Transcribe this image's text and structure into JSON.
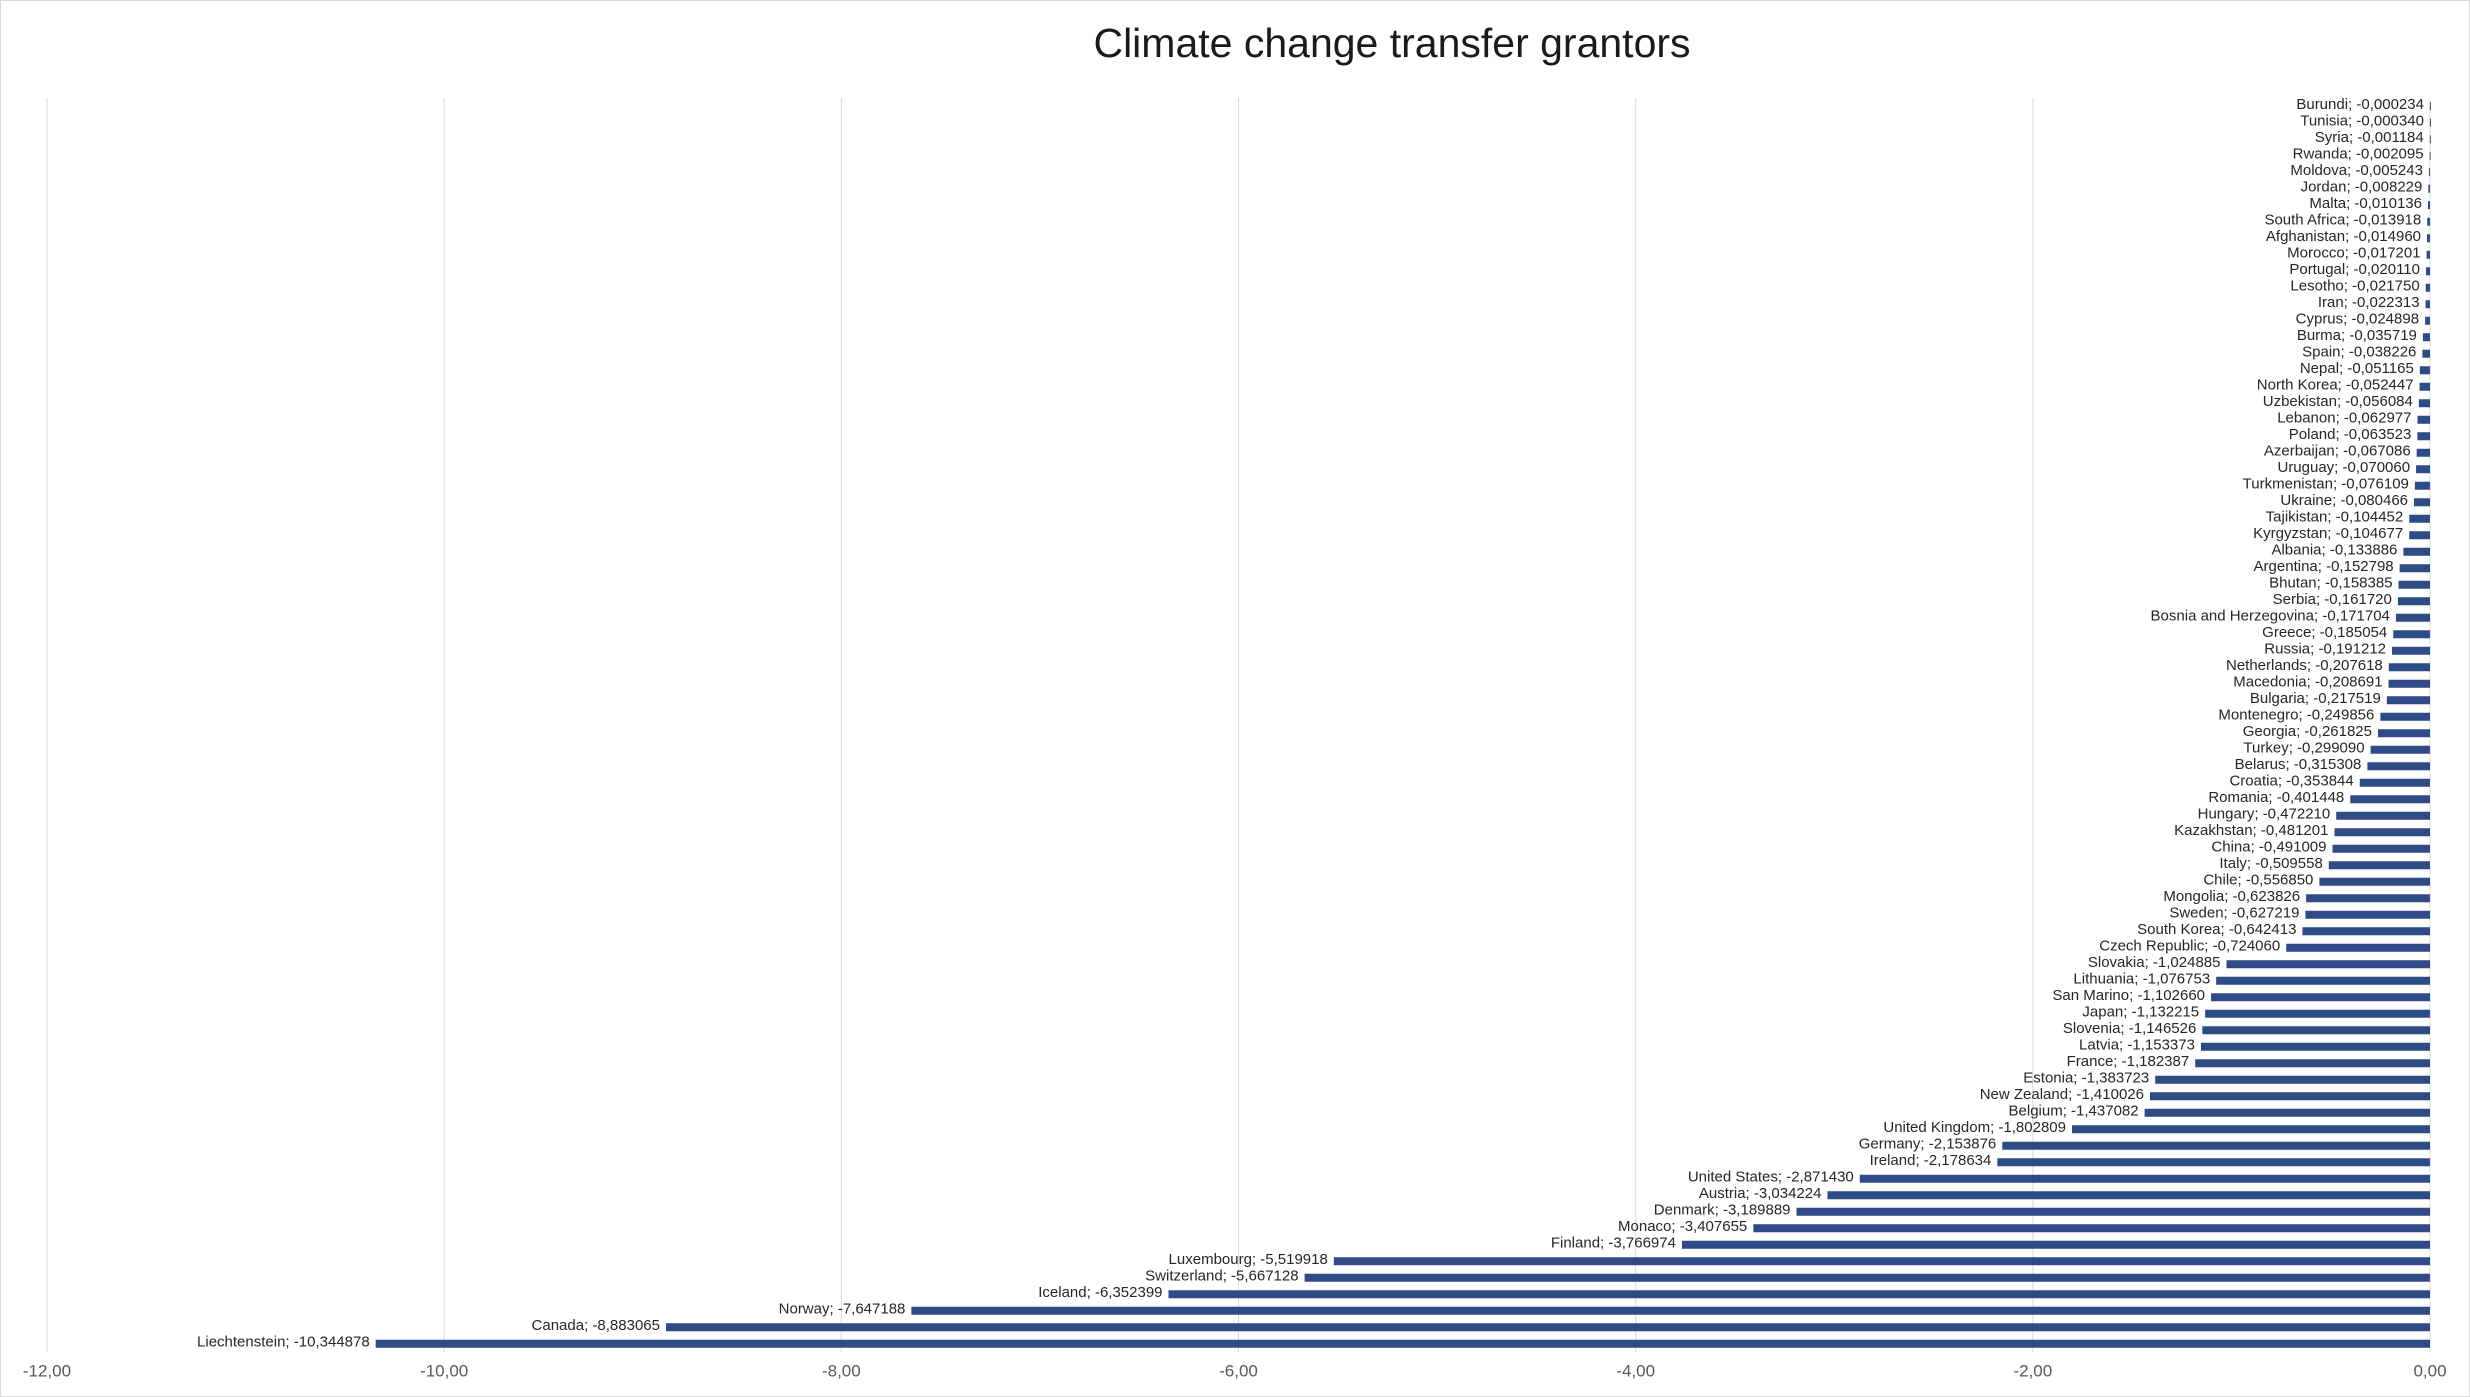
{
  "chart_data": {
    "type": "hbar",
    "title": "Climate change transfer grantors",
    "color": "#2f4b85",
    "grid": true,
    "xlim": [
      -12,
      0
    ],
    "xticks": [
      {
        "value": -12,
        "label": "-12,00"
      },
      {
        "value": -10,
        "label": "-10,00"
      },
      {
        "value": -8,
        "label": "-8,00"
      },
      {
        "value": -6,
        "label": "-6,00"
      },
      {
        "value": -4,
        "label": "-4,00"
      },
      {
        "value": -2,
        "label": "-2,00"
      },
      {
        "value": 0,
        "label": "0,00"
      }
    ],
    "values": [
      -0.000234,
      -0.00034,
      -0.001184,
      -0.002095,
      -0.005243,
      -0.008229,
      -0.010136,
      -0.013918,
      -0.01496,
      -0.017201,
      -0.02011,
      -0.02175,
      -0.022313,
      -0.024898,
      -0.035719,
      -0.038226,
      -0.051165,
      -0.052447,
      -0.056084,
      -0.062977,
      -0.063523,
      -0.067086,
      -0.07006,
      -0.076109,
      -0.080466,
      -0.104452,
      -0.104677,
      -0.133886,
      -0.152798,
      -0.158385,
      -0.16172,
      -0.171704,
      -0.185054,
      -0.191212,
      -0.207618,
      -0.208691,
      -0.217519,
      -0.249856,
      -0.261825,
      -0.29909,
      -0.315308,
      -0.353844,
      -0.401448,
      -0.47221,
      -0.481201,
      -0.491009,
      -0.509558,
      -0.55685,
      -0.623826,
      -0.627219,
      -0.642413,
      -0.72406,
      -1.024885,
      -1.076753,
      -1.10266,
      -1.132215,
      -1.146526,
      -1.153373,
      -1.182387,
      -1.383723,
      -1.410026,
      -1.437082,
      -1.802809,
      -2.153876,
      -2.178634,
      -2.87143,
      -3.034224,
      -3.189889,
      -3.407655,
      -3.766974,
      -5.519918,
      -5.667128,
      -6.352399,
      -7.647188,
      -8.883065,
      -10.344878
    ],
    "value_labels": [
      "Burundi; -0,000234",
      "Tunisia; -0,000340",
      "Syria; -0,001184",
      "Rwanda; -0,002095",
      "Moldova; -0,005243",
      "Jordan; -0,008229",
      "Malta; -0,010136",
      "South Africa; -0,013918",
      "Afghanistan; -0,014960",
      "Morocco; -0,017201",
      "Portugal; -0,020110",
      "Lesotho; -0,021750",
      "Iran; -0,022313",
      "Cyprus; -0,024898",
      "Burma; -0,035719",
      "Spain; -0,038226",
      "Nepal; -0,051165",
      "North Korea; -0,052447",
      "Uzbekistan; -0,056084",
      "Lebanon; -0,062977",
      "Poland; -0,063523",
      "Azerbaijan; -0,067086",
      "Uruguay; -0,070060",
      "Turkmenistan; -0,076109",
      "Ukraine; -0,080466",
      "Tajikistan; -0,104452",
      "Kyrgyzstan; -0,104677",
      "Albania; -0,133886",
      "Argentina; -0,152798",
      "Bhutan; -0,158385",
      "Serbia; -0,161720",
      "Bosnia and Herzegovina; -0,171704",
      "Greece; -0,185054",
      "Russia; -0,191212",
      "Netherlands; -0,207618",
      "Macedonia; -0,208691",
      "Bulgaria; -0,217519",
      "Montenegro; -0,249856",
      "Georgia; -0,261825",
      "Turkey; -0,299090",
      "Belarus; -0,315308",
      "Croatia; -0,353844",
      "Romania; -0,401448",
      "Hungary; -0,472210",
      "Kazakhstan; -0,481201",
      "China; -0,491009",
      "Italy; -0,509558",
      "Chile; -0,556850",
      "Mongolia; -0,623826",
      "Sweden; -0,627219",
      "South Korea; -0,642413",
      "Czech Republic; -0,724060",
      "Slovakia; -1,024885",
      "Lithuania; -1,076753",
      "San Marino; -1,102660",
      "Japan; -1,132215",
      "Slovenia; -1,146526",
      "Latvia; -1,153373",
      "France; -1,182387",
      "Estonia; -1,383723",
      "New Zealand; -1,410026",
      "Belgium; -1,437082",
      "United Kingdom; -1,802809",
      "Germany; -2,153876",
      "Ireland; -2,178634",
      "United States; -2,871430",
      "Austria; -3,034224",
      "Denmark; -3,189889",
      "Monaco; -3,407655",
      "Finland; -3,766974",
      "Luxembourg; -5,519918",
      "Switzerland; -5,667128",
      "Iceland; -6,352399",
      "Norway; -7,647188",
      "Canada; -8,883065",
      "Liechtenstein; -10,344878"
    ]
  }
}
